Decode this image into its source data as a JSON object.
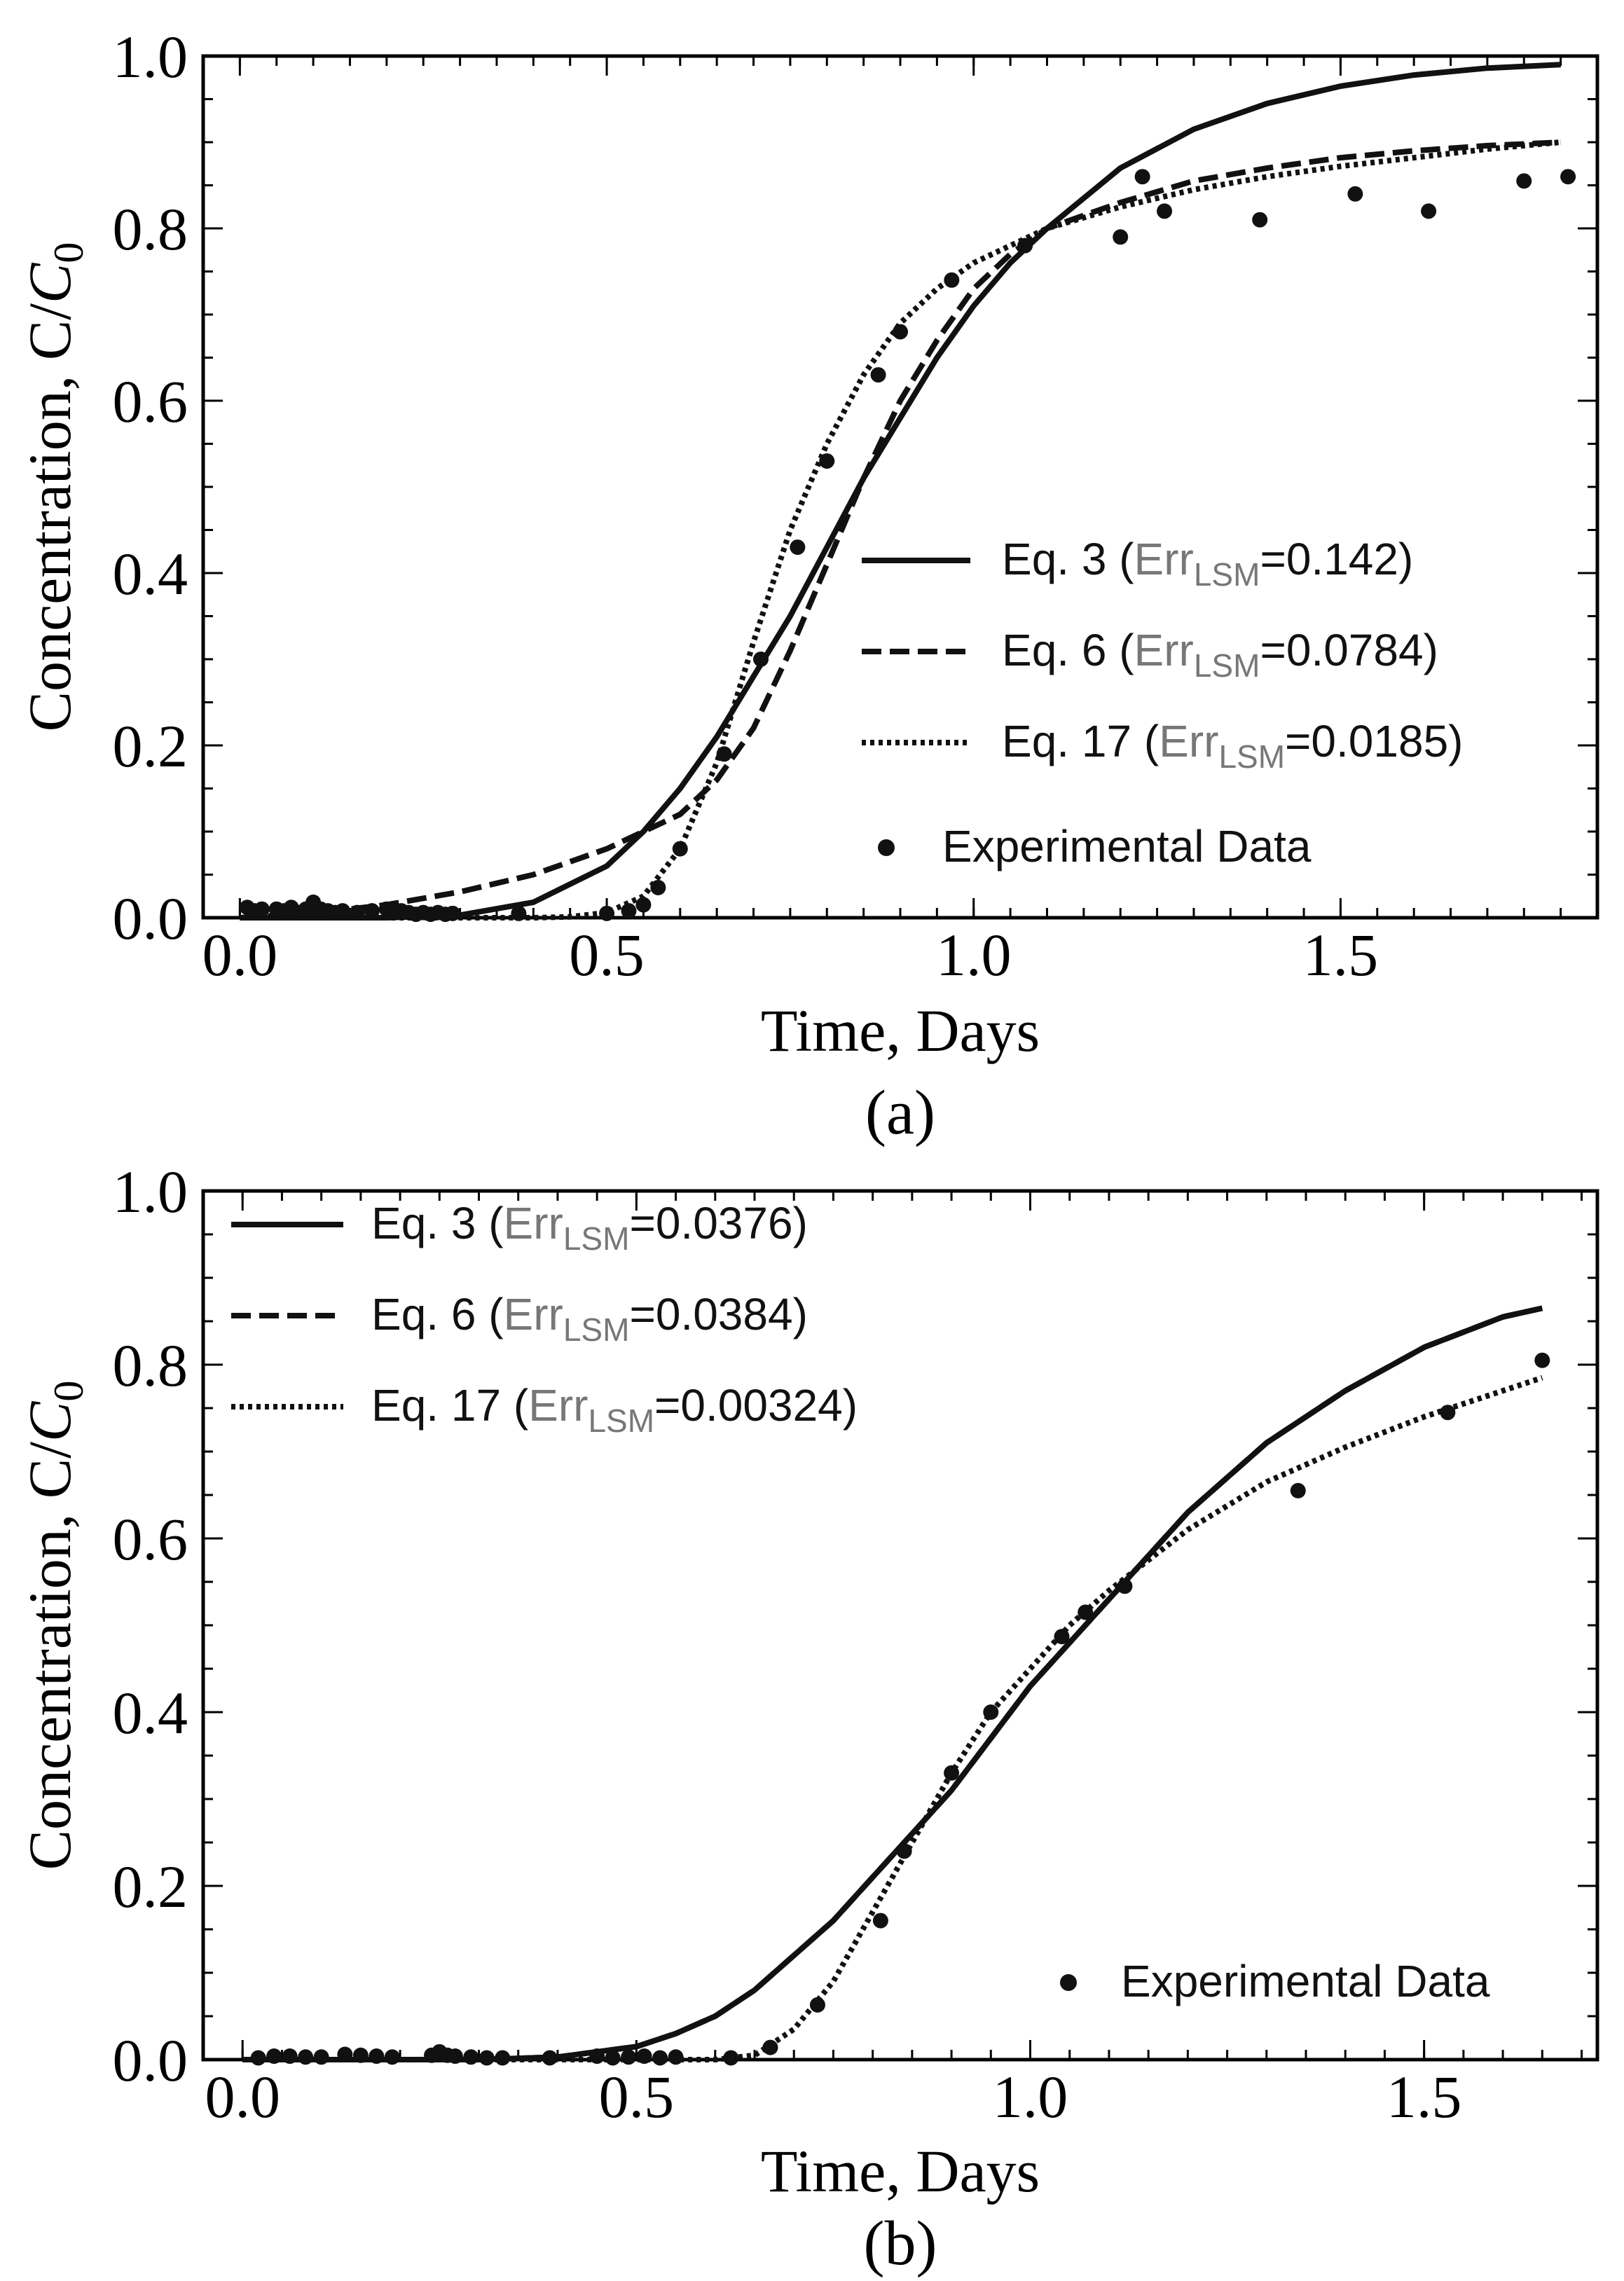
{
  "chart_data": [
    {
      "type": "line",
      "panel_label": "(a)",
      "xlabel": "Time, Days",
      "ylabel_main": "Concentration, C/",
      "ylabel_italic": "C",
      "ylabel_sub": "0",
      "xlim": [
        -0.05,
        1.85
      ],
      "ylim": [
        0.0,
        1.0
      ],
      "xticks": [
        {
          "value": 0.0,
          "label": "0.0"
        },
        {
          "value": 0.5,
          "label": "0.5"
        },
        {
          "value": 1.0,
          "label": "1.0"
        },
        {
          "value": 1.5,
          "label": "1.5"
        }
      ],
      "yticks": [
        {
          "value": 0.0,
          "label": "0.0"
        },
        {
          "value": 0.2,
          "label": "0.2"
        },
        {
          "value": 0.4,
          "label": "0.4"
        },
        {
          "value": 0.6,
          "label": "0.6"
        },
        {
          "value": 0.8,
          "label": "0.8"
        },
        {
          "value": 1.0,
          "label": "1.0"
        }
      ],
      "minor_step_x": 0.05,
      "minor_step_y": 0.05,
      "legend_position": "lower-right",
      "series": [
        {
          "name": "Eq. 3",
          "style": "solid",
          "err_label": "Err",
          "err_sub": "LSM",
          "err_value": "=0.142)",
          "prefix": "Eq. 3 (",
          "x": [
            0.0,
            0.1,
            0.2,
            0.3,
            0.4,
            0.5,
            0.55,
            0.6,
            0.65,
            0.7,
            0.75,
            0.8,
            0.85,
            0.9,
            0.95,
            1.0,
            1.05,
            1.1,
            1.2,
            1.3,
            1.4,
            1.5,
            1.6,
            1.7,
            1.8
          ],
          "y": [
            0.0,
            0.0,
            0.0,
            0.003,
            0.018,
            0.06,
            0.1,
            0.15,
            0.21,
            0.28,
            0.35,
            0.43,
            0.51,
            0.58,
            0.65,
            0.71,
            0.76,
            0.8,
            0.87,
            0.915,
            0.945,
            0.965,
            0.978,
            0.986,
            0.99
          ]
        },
        {
          "name": "Eq. 6",
          "style": "dashed",
          "err_label": "Err",
          "err_sub": "LSM",
          "err_value": "=0.0784)",
          "prefix": "Eq. 6 (",
          "x": [
            0.0,
            0.1,
            0.2,
            0.3,
            0.4,
            0.5,
            0.55,
            0.6,
            0.65,
            0.7,
            0.75,
            0.8,
            0.85,
            0.9,
            0.95,
            1.0,
            1.05,
            1.1,
            1.2,
            1.3,
            1.4,
            1.5,
            1.6,
            1.7,
            1.8
          ],
          "y": [
            0.0,
            0.005,
            0.015,
            0.03,
            0.05,
            0.08,
            0.1,
            0.12,
            0.16,
            0.22,
            0.31,
            0.41,
            0.51,
            0.6,
            0.67,
            0.73,
            0.77,
            0.8,
            0.83,
            0.855,
            0.87,
            0.882,
            0.89,
            0.896,
            0.9
          ]
        },
        {
          "name": "Eq. 17",
          "style": "dotted",
          "err_label": "Err",
          "err_sub": "LSM",
          "err_value": "=0.0185)",
          "prefix": "Eq. 17 (",
          "x": [
            0.0,
            0.1,
            0.2,
            0.3,
            0.4,
            0.45,
            0.5,
            0.55,
            0.6,
            0.65,
            0.7,
            0.75,
            0.8,
            0.85,
            0.9,
            0.95,
            1.0,
            1.05,
            1.1,
            1.2,
            1.3,
            1.4,
            1.5,
            1.6,
            1.7,
            1.8
          ],
          "y": [
            0.0,
            0.0,
            0.0,
            0.0,
            0.0,
            0.001,
            0.006,
            0.025,
            0.08,
            0.18,
            0.32,
            0.45,
            0.55,
            0.63,
            0.69,
            0.73,
            0.76,
            0.78,
            0.8,
            0.825,
            0.845,
            0.86,
            0.872,
            0.882,
            0.892,
            0.9
          ]
        },
        {
          "name": "Experimental Data",
          "style": "points",
          "x": [
            0.01,
            0.02,
            0.03,
            0.05,
            0.06,
            0.07,
            0.08,
            0.09,
            0.1,
            0.11,
            0.12,
            0.13,
            0.14,
            0.16,
            0.18,
            0.2,
            0.21,
            0.22,
            0.23,
            0.24,
            0.25,
            0.26,
            0.27,
            0.28,
            0.29,
            0.38,
            0.5,
            0.53,
            0.55,
            0.57,
            0.6,
            0.66,
            0.71,
            0.76,
            0.8,
            0.87,
            0.9,
            0.97,
            1.07,
            1.2,
            1.23,
            1.26,
            1.39,
            1.52,
            1.62,
            1.75,
            1.81
          ],
          "y": [
            0.012,
            0.008,
            0.01,
            0.01,
            0.008,
            0.012,
            0.006,
            0.01,
            0.018,
            0.01,
            0.008,
            0.006,
            0.008,
            0.006,
            0.008,
            0.01,
            0.006,
            0.008,
            0.006,
            0.004,
            0.006,
            0.004,
            0.006,
            0.004,
            0.005,
            0.005,
            0.005,
            0.008,
            0.015,
            0.035,
            0.08,
            0.19,
            0.3,
            0.43,
            0.53,
            0.63,
            0.68,
            0.74,
            0.78,
            0.79,
            0.86,
            0.82,
            0.81,
            0.84,
            0.82,
            0.855,
            0.86
          ]
        }
      ]
    },
    {
      "type": "line",
      "panel_label": "(b)",
      "xlabel": "Time, Days",
      "ylabel_main": "Concentration, C/",
      "ylabel_italic": "C",
      "ylabel_sub": "0",
      "xlim": [
        -0.05,
        1.72
      ],
      "ylim": [
        0.0,
        1.0
      ],
      "xticks": [
        {
          "value": 0.0,
          "label": "0.0"
        },
        {
          "value": 0.5,
          "label": "0.5"
        },
        {
          "value": 1.0,
          "label": "1.0"
        },
        {
          "value": 1.5,
          "label": "1.5"
        }
      ],
      "yticks": [
        {
          "value": 0.0,
          "label": "0.0"
        },
        {
          "value": 0.2,
          "label": "0.2"
        },
        {
          "value": 0.4,
          "label": "0.4"
        },
        {
          "value": 0.6,
          "label": "0.6"
        },
        {
          "value": 0.8,
          "label": "0.8"
        },
        {
          "value": 1.0,
          "label": "1.0"
        }
      ],
      "minor_step_x": 0.05,
      "minor_step_y": 0.05,
      "legend_position": "top-left",
      "series": [
        {
          "name": "Eq. 3",
          "style": "solid",
          "err_label": "Err",
          "err_sub": "LSM",
          "err_value": "=0.0376)",
          "prefix": "Eq. 3 (",
          "x": [
            0.0,
            0.1,
            0.2,
            0.3,
            0.4,
            0.5,
            0.55,
            0.6,
            0.65,
            0.7,
            0.75,
            0.8,
            0.85,
            0.9,
            0.95,
            1.0,
            1.05,
            1.1,
            1.2,
            1.3,
            1.4,
            1.5,
            1.6,
            1.65
          ],
          "y": [
            0.0,
            0.0,
            0.0,
            0.0,
            0.003,
            0.015,
            0.03,
            0.05,
            0.08,
            0.12,
            0.16,
            0.21,
            0.26,
            0.31,
            0.37,
            0.43,
            0.48,
            0.53,
            0.63,
            0.71,
            0.77,
            0.82,
            0.855,
            0.865
          ]
        },
        {
          "name": "Eq. 6",
          "style": "dashed",
          "err_label": "Err",
          "err_sub": "LSM",
          "err_value": "=0.0384)",
          "prefix": "Eq. 6 (",
          "x": [
            0.0,
            0.1,
            0.2,
            0.3,
            0.4,
            0.5,
            0.55,
            0.6,
            0.65,
            0.7,
            0.75,
            0.8,
            0.85,
            0.9,
            0.95,
            1.0,
            1.05,
            1.1,
            1.2,
            1.3,
            1.4,
            1.5,
            1.6,
            1.65
          ],
          "y": [
            0.0,
            0.0,
            0.0,
            0.0,
            0.003,
            0.015,
            0.03,
            0.05,
            0.08,
            0.12,
            0.16,
            0.21,
            0.26,
            0.31,
            0.37,
            0.43,
            0.48,
            0.53,
            0.63,
            0.71,
            0.77,
            0.82,
            0.855,
            0.865
          ]
        },
        {
          "name": "Eq. 17",
          "style": "dotted",
          "err_label": "Err",
          "err_sub": "LSM",
          "err_value": "=0.00324)",
          "prefix": "Eq. 17 (",
          "x": [
            0.0,
            0.1,
            0.2,
            0.3,
            0.4,
            0.5,
            0.55,
            0.6,
            0.65,
            0.7,
            0.75,
            0.8,
            0.85,
            0.9,
            0.95,
            1.0,
            1.05,
            1.1,
            1.2,
            1.3,
            1.4,
            1.5,
            1.6,
            1.65
          ],
          "y": [
            0.0,
            0.0,
            0.0,
            0.0,
            0.0,
            0.0,
            0.0,
            0.0,
            0.005,
            0.035,
            0.09,
            0.17,
            0.25,
            0.33,
            0.4,
            0.45,
            0.5,
            0.54,
            0.61,
            0.665,
            0.705,
            0.74,
            0.77,
            0.785
          ]
        },
        {
          "name": "Experimental Data",
          "style": "points",
          "x": [
            0.02,
            0.04,
            0.06,
            0.08,
            0.1,
            0.13,
            0.15,
            0.17,
            0.19,
            0.24,
            0.25,
            0.26,
            0.27,
            0.29,
            0.31,
            0.33,
            0.39,
            0.45,
            0.47,
            0.49,
            0.51,
            0.53,
            0.55,
            0.62,
            0.67,
            0.73,
            0.81,
            0.84,
            0.9,
            0.95,
            1.04,
            1.07,
            1.12,
            1.34,
            1.53,
            1.65
          ],
          "y": [
            0.002,
            0.004,
            0.004,
            0.003,
            0.003,
            0.006,
            0.005,
            0.004,
            0.003,
            0.005,
            0.009,
            0.005,
            0.004,
            0.003,
            0.002,
            0.002,
            0.002,
            0.004,
            0.002,
            0.003,
            0.004,
            0.002,
            0.003,
            0.002,
            0.014,
            0.063,
            0.16,
            0.24,
            0.33,
            0.4,
            0.487,
            0.515,
            0.545,
            0.655,
            0.745,
            0.805
          ]
        }
      ]
    }
  ]
}
